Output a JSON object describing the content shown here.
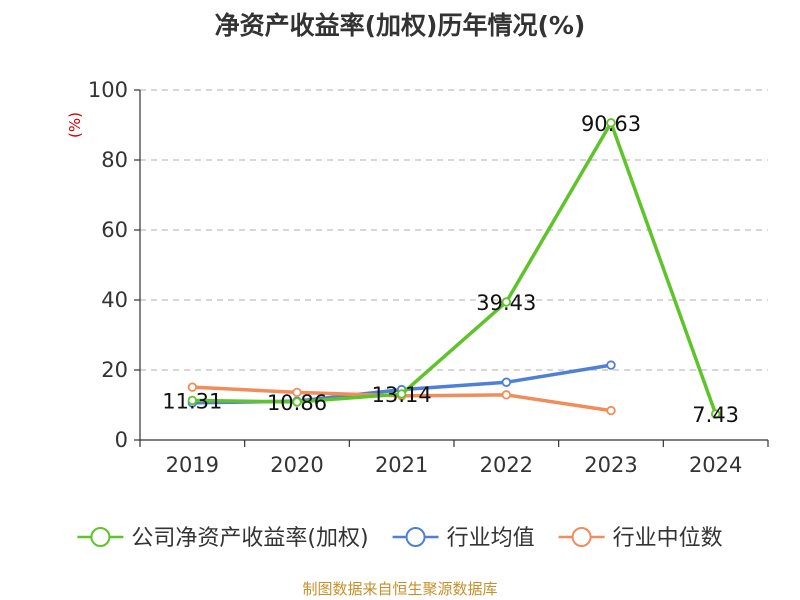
{
  "chart_data": {
    "type": "line",
    "title": "净资产收益率(加权)历年情况(%)",
    "ylabel": "(%)",
    "xlabel": "",
    "categories": [
      "2019",
      "2020",
      "2021",
      "2022",
      "2023",
      "2024"
    ],
    "ylim": [
      0,
      100
    ],
    "yticks": [
      0,
      20,
      40,
      60,
      80,
      100
    ],
    "grid": true,
    "legend_position": "bottom",
    "series": [
      {
        "name": "公司净资产收益率(加权)",
        "color": "#5ec42a",
        "values": [
          11.31,
          10.86,
          13.14,
          39.43,
          90.63,
          7.43
        ],
        "data_labels": [
          "11.31",
          "10.86",
          "13.14",
          "39.43",
          "90.63",
          "7.43"
        ]
      },
      {
        "name": "行业均值",
        "color": "#4f7fd6",
        "values": [
          10.6,
          11.1,
          14.4,
          16.5,
          21.4,
          null
        ]
      },
      {
        "name": "行业中位数",
        "color": "#f28c5a",
        "values": [
          15.1,
          13.6,
          12.6,
          12.9,
          8.4,
          null
        ]
      }
    ]
  },
  "source": "制图数据来自恒生聚源数据库"
}
